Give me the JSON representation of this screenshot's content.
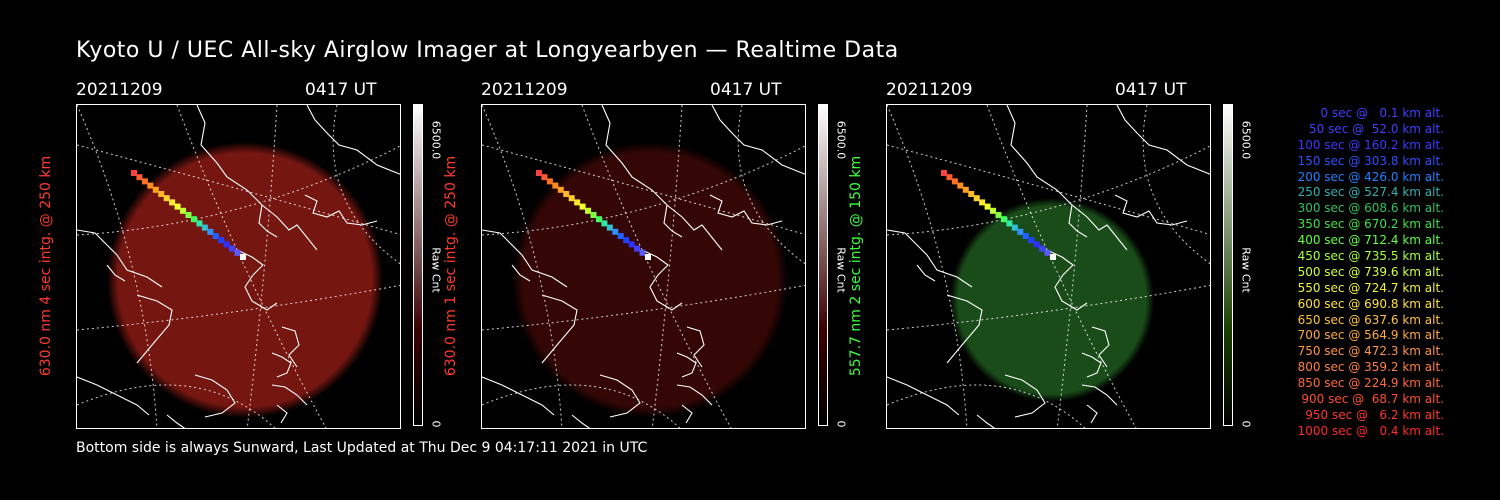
{
  "title": "Kyoto U / UEC All-sky Airglow Imager at Longyearbyen — Realtime Data",
  "footer": "Bottom side is always Sunward, Last Updated at Thu Dec  9 04:17:11 2021 in UTC",
  "colors": {
    "background": "#000000",
    "red_channel": "#ff3a2a",
    "green_channel": "#3dff3d",
    "map_lines": "#ffffff"
  },
  "panels": [
    {
      "date": "20211209",
      "time": "0417 UT",
      "ylabel": "630.0 nm 4 sec intg. @ 250 km",
      "label_color": "#ff3a2a",
      "image_color": "#8a1a14",
      "image_opacity": 0.85,
      "colorbar": {
        "max": "6500.0",
        "min": "0",
        "label": "Raw Cnt",
        "top_color": "#ffffff",
        "bottom_color": "#3a0000"
      }
    },
    {
      "date": "20211209",
      "time": "0417 UT",
      "ylabel": "630.0 nm 1 sec intg. @ 250 km",
      "label_color": "#ff3a2a",
      "image_color": "#3a0806",
      "image_opacity": 0.9,
      "colorbar": {
        "max": "6500.0",
        "min": "0",
        "label": "Raw Cnt",
        "top_color": "#ffffff",
        "bottom_color": "#3a0000"
      }
    },
    {
      "date": "20211209",
      "time": "0417 UT",
      "ylabel": "557.7 nm 2 sec intg. @ 150 km",
      "label_color": "#3dff3d",
      "image_color": "#1f5a1f",
      "image_opacity": 0.85,
      "colorbar": {
        "max": "6500.0",
        "min": "0",
        "label": "Raw Cnt",
        "top_color": "#ffffff",
        "bottom_color": "#1a4000"
      }
    }
  ],
  "trajectory_colors": [
    "#ff4040",
    "#ff5a30",
    "#ff7020",
    "#ff8a20",
    "#ffa020",
    "#ffb82a",
    "#ffd030",
    "#ffe830",
    "#f0ff30",
    "#c0ff30",
    "#80ff40",
    "#40ff60",
    "#30e8a0",
    "#30c0d0",
    "#3090ff",
    "#2060ff",
    "#2040ff",
    "#3030ff",
    "#4040ff",
    "#5a5aff",
    "#ffffff"
  ],
  "legend": [
    {
      "text": "  0 sec @   0.1 km alt.",
      "color": "#4040ff"
    },
    {
      "text": " 50 sec @  52.0 km alt.",
      "color": "#4040ff"
    },
    {
      "text": "100 sec @ 160.2 km alt.",
      "color": "#3a3aff"
    },
    {
      "text": "150 sec @ 303.8 km alt.",
      "color": "#3050ff"
    },
    {
      "text": "200 sec @ 426.0 km alt.",
      "color": "#2080ff"
    },
    {
      "text": "250 sec @ 527.4 km alt.",
      "color": "#30b0b0"
    },
    {
      "text": "300 sec @ 608.6 km alt.",
      "color": "#30c060"
    },
    {
      "text": "350 sec @ 670.2 km alt.",
      "color": "#40e040"
    },
    {
      "text": "400 sec @ 712.4 km alt.",
      "color": "#60ff40"
    },
    {
      "text": "450 sec @ 735.5 km alt.",
      "color": "#a0ff40"
    },
    {
      "text": "500 sec @ 739.6 km alt.",
      "color": "#d0ff40"
    },
    {
      "text": "550 sec @ 724.7 km alt.",
      "color": "#f0f040"
    },
    {
      "text": "600 sec @ 690.8 km alt.",
      "color": "#ffe040"
    },
    {
      "text": "650 sec @ 637.6 km alt.",
      "color": "#ffc040"
    },
    {
      "text": "700 sec @ 564.9 km alt.",
      "color": "#ffa840"
    },
    {
      "text": "750 sec @ 472.3 km alt.",
      "color": "#ff9440"
    },
    {
      "text": "800 sec @ 359.2 km alt.",
      "color": "#ff8040"
    },
    {
      "text": "850 sec @ 224.9 km alt.",
      "color": "#ff6a3a"
    },
    {
      "text": "900 sec @  68.7 km alt.",
      "color": "#ff5030"
    },
    {
      "text": "950 sec @   6.2 km alt.",
      "color": "#ff3a2a"
    },
    {
      "text": "1000 sec @   0.4 km alt.",
      "color": "#ff2a2a"
    }
  ]
}
